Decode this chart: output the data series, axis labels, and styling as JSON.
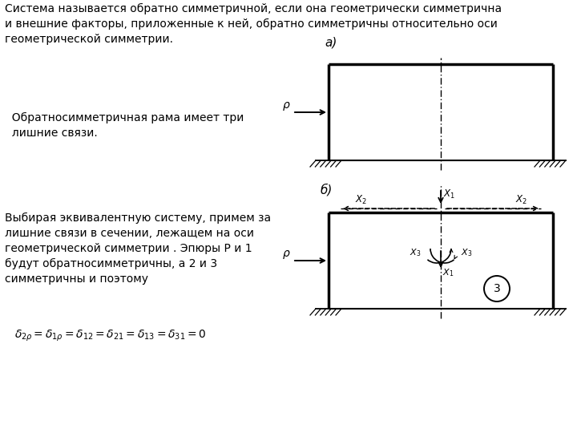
{
  "title_text": "Система называется обратно симметричной, если она геометрически симметрична\nи внешние факторы, приложенные к ней, обратно симметричны относительно оси\nгеометрической симметрии.",
  "text_a": "  Обратносимметричная рама имеет три\n  лишние связи.",
  "text_b": "Выбирая эквивалентную систему, примем за\nлишние связи в сечении, лежащем на оси\nгеометрической симметрии . Эпюры P и 1\nбудут обратносимметричны, а 2 и 3\nсимметричны и поэтому",
  "label_a": "а)",
  "label_b": "б)",
  "bg_color": "#ffffff",
  "line_color": "#000000",
  "fig_width": 7.2,
  "fig_height": 5.4,
  "dpi": 100
}
